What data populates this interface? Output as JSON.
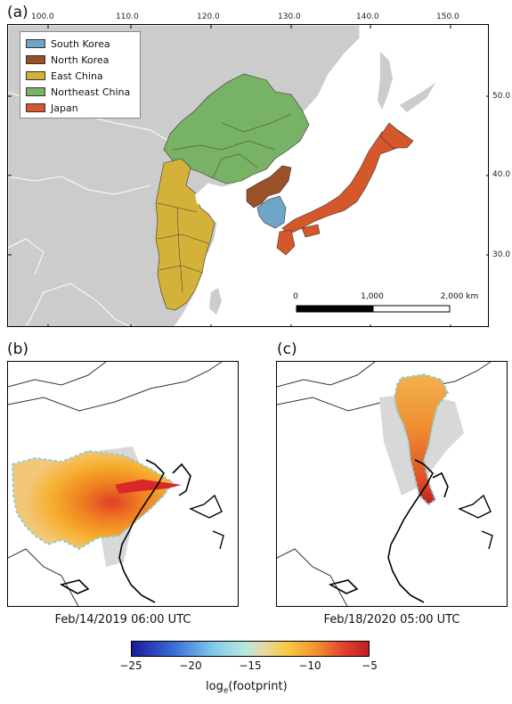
{
  "panels": {
    "a": {
      "label": "(a)"
    },
    "b": {
      "label": "(b)",
      "caption": "Feb/14/2019 06:00 UTC"
    },
    "c": {
      "label": "(c)",
      "caption": "Feb/18/2020 05:00 UTC"
    }
  },
  "axes": {
    "lon_ticks": [
      "100.0",
      "110.0",
      "120.0",
      "130.0",
      "140.0",
      "150.0"
    ],
    "lat_ticks": [
      "50.0",
      "40.0",
      "30.0"
    ]
  },
  "legend": {
    "items": [
      {
        "label": "South Korea",
        "color": "#6fa6c8"
      },
      {
        "label": "North Korea",
        "color": "#9a5028"
      },
      {
        "label": "East China",
        "color": "#d4b23a"
      },
      {
        "label": "Northeast China",
        "color": "#78b365"
      },
      {
        "label": "Japan",
        "color": "#d6582a"
      }
    ]
  },
  "scale_bar": {
    "labels": [
      "0",
      "1,000",
      "2,000 km"
    ]
  },
  "colorbar": {
    "ticks": [
      "−25",
      "−20",
      "−15",
      "−10",
      "−5"
    ],
    "label_main": "log",
    "label_sub": "e",
    "label_rest": "(footprint)"
  },
  "colors": {
    "land": "#cccccc",
    "border": "#ffffff",
    "sea": "#ffffff"
  }
}
